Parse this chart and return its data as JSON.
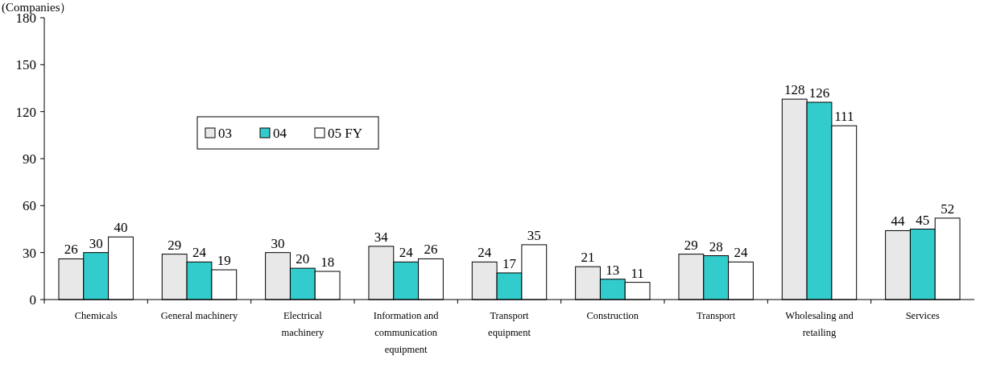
{
  "chart_data": {
    "type": "bar",
    "ylabel": "(Companies）",
    "categories": [
      "Chemicals",
      "General machinery",
      "Electrical machinery",
      "Information and communication equipment",
      "Transport equipment",
      "Construction",
      "Transport",
      "Wholesaling and retailing",
      "Services"
    ],
    "series": [
      {
        "name": "03",
        "color": "#e8e8e8",
        "values": [
          26,
          29,
          30,
          34,
          24,
          21,
          29,
          128,
          44
        ]
      },
      {
        "name": "04",
        "color": "#33cccc",
        "values": [
          30,
          24,
          20,
          24,
          17,
          13,
          28,
          126,
          45
        ]
      },
      {
        "name": "05 FY",
        "color": "#ffffff",
        "values": [
          40,
          19,
          18,
          26,
          35,
          11,
          24,
          111,
          52
        ]
      }
    ],
    "ylim": [
      0,
      180
    ],
    "yticks": [
      0,
      30,
      60,
      90,
      120,
      150,
      180
    ],
    "data_labels": true,
    "legend": "top left",
    "grid": false
  }
}
